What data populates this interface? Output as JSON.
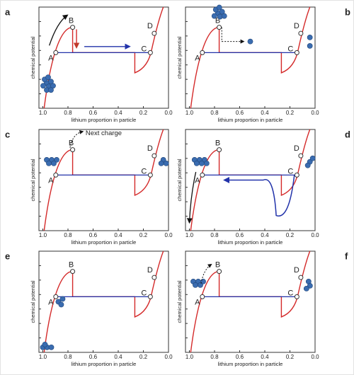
{
  "panels": [
    {
      "label": "a",
      "y_label": "chemical potential",
      "x_label": "lithium proportion in particle",
      "x_ticks": [
        "1.0",
        "0.8",
        "0.6",
        "0.4",
        "0.2",
        "0.0"
      ],
      "points": [
        "A",
        "B",
        "C",
        "D"
      ]
    },
    {
      "label": "b",
      "y_label": "chemical potential",
      "x_label": "lithium proportion in particle",
      "x_ticks": [
        "1.0",
        "0.8",
        "0.6",
        "0.4",
        "0.2",
        "0.0"
      ],
      "points": [
        "A",
        "B",
        "C",
        "D"
      ]
    },
    {
      "label": "c",
      "y_label": "chemical potential",
      "x_label": "lithium proportion in particle",
      "x_ticks": [
        "1.0",
        "0.8",
        "0.6",
        "0.4",
        "0.2",
        "0.0"
      ],
      "points": [
        "A",
        "B",
        "C",
        "D"
      ],
      "note": "Next charge"
    },
    {
      "label": "d",
      "y_label": "chemical potential",
      "x_label": "lithium proportion in particle",
      "x_ticks": [
        "1.0",
        "0.8",
        "0.6",
        "0.4",
        "0.2",
        "0.0"
      ],
      "points": [
        "A",
        "B",
        "C",
        "D"
      ]
    },
    {
      "label": "e",
      "y_label": "chemical potential",
      "x_label": "lithium proportion in particle",
      "x_ticks": [
        "1.0",
        "0.8",
        "0.6",
        "0.4",
        "0.2",
        "0.0"
      ],
      "points": [
        "A",
        "B",
        "C",
        "D"
      ]
    },
    {
      "label": "f",
      "y_label": "chemical potential",
      "x_label": "lithium proportion in particle",
      "x_ticks": [
        "1.0",
        "0.8",
        "0.6",
        "0.4",
        "0.2",
        "0.0"
      ],
      "points": [
        "A",
        "B",
        "C",
        "D"
      ]
    }
  ]
}
